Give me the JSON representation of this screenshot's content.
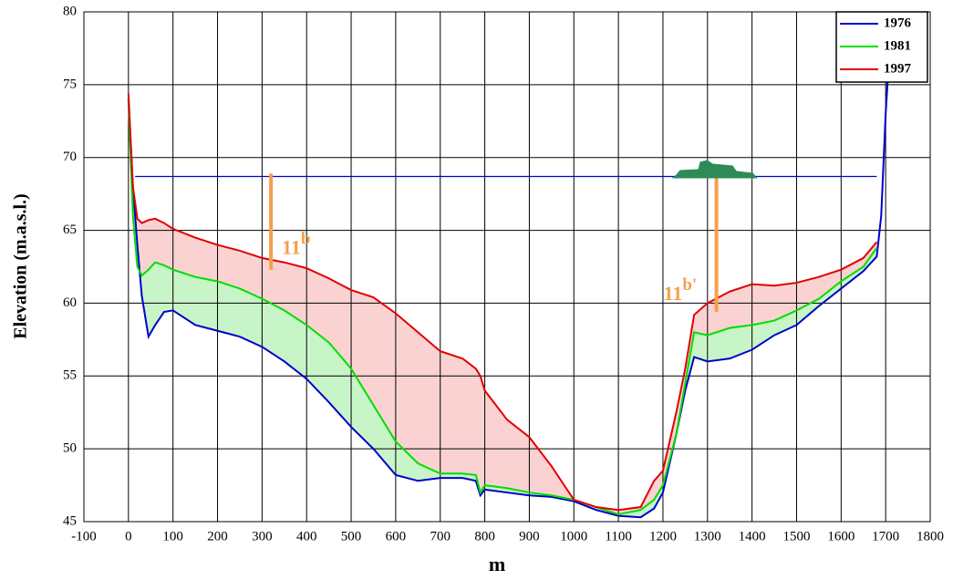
{
  "chart_data": {
    "type": "line",
    "xlabel": "m",
    "ylabel": "Elevation (m.a.s.l.)",
    "xlim": [
      -100,
      1800
    ],
    "xticks": [
      -100,
      0,
      100,
      200,
      300,
      400,
      500,
      600,
      700,
      800,
      900,
      1000,
      1100,
      1200,
      1300,
      1400,
      1500,
      1600,
      1700,
      1800
    ],
    "ylim": [
      45,
      80
    ],
    "yticks": [
      45,
      50,
      55,
      60,
      65,
      70,
      75,
      80
    ],
    "grid": true,
    "legend": "upper right",
    "x": [
      0,
      10,
      20,
      30,
      45,
      60,
      80,
      100,
      150,
      200,
      250,
      300,
      350,
      400,
      450,
      500,
      550,
      600,
      650,
      700,
      750,
      780,
      790,
      800,
      850,
      900,
      950,
      1000,
      1050,
      1100,
      1150,
      1180,
      1200,
      1230,
      1250,
      1270,
      1300,
      1350,
      1400,
      1450,
      1500,
      1550,
      1600,
      1650,
      1680,
      1690,
      1700,
      1705
    ],
    "series": [
      {
        "name": "1976",
        "color": "#0000cc",
        "values": [
          74,
          68,
          64,
          60.5,
          57.7,
          58.5,
          59.4,
          59.5,
          58.5,
          58.1,
          57.7,
          57.0,
          56.0,
          54.8,
          53.2,
          51.5,
          50.0,
          48.2,
          47.8,
          48.0,
          48.0,
          47.8,
          46.8,
          47.2,
          47.0,
          46.8,
          46.7,
          46.4,
          45.8,
          45.4,
          45.3,
          45.9,
          47.0,
          51.0,
          54.0,
          56.3,
          56.0,
          56.2,
          56.8,
          57.8,
          58.5,
          59.8,
          61.0,
          62.2,
          63.2,
          66,
          73,
          75.5
        ]
      },
      {
        "name": "1981",
        "color": "#00dd00",
        "fill": "#c8f5c8",
        "values": [
          74,
          66,
          62.5,
          61.9,
          62.3,
          62.8,
          62.6,
          62.3,
          61.8,
          61.5,
          61.0,
          60.3,
          59.5,
          58.5,
          57.3,
          55.5,
          53.0,
          50.5,
          49.0,
          48.3,
          48.3,
          48.2,
          47.0,
          47.5,
          47.3,
          47.0,
          46.8,
          46.5,
          46.0,
          45.5,
          45.8,
          46.5,
          47.5,
          51.0,
          54.5,
          58.0,
          57.8,
          58.3,
          58.5,
          58.8,
          59.5,
          60.3,
          61.5,
          62.5,
          63.8,
          null,
          null,
          null
        ]
      },
      {
        "name": "1997",
        "color": "#e00000",
        "fill": "#fad2d2",
        "values": [
          74.4,
          68,
          65.8,
          65.5,
          65.7,
          65.8,
          65.5,
          65.1,
          64.5,
          64.0,
          63.6,
          63.1,
          62.8,
          62.4,
          61.7,
          60.9,
          60.4,
          59.3,
          58.0,
          56.7,
          56.2,
          55.5,
          55.0,
          54.0,
          52.0,
          50.8,
          48.8,
          46.5,
          46.0,
          45.8,
          46.0,
          47.8,
          48.5,
          52.5,
          55.5,
          59.2,
          60.0,
          60.8,
          61.3,
          61.2,
          61.4,
          61.8,
          62.3,
          63.1,
          64.2,
          null,
          null,
          null
        ]
      }
    ],
    "water_level": {
      "y": 68.7,
      "x": [
        15,
        1680
      ],
      "color": "#0000cc"
    },
    "annotations": [
      {
        "x": 320,
        "y": [
          62.3,
          68.9
        ],
        "label": "11",
        "sup": "b",
        "color": "#f5a04a"
      },
      {
        "x": 1320,
        "y": [
          59.4,
          68.7
        ],
        "label": "11",
        "sup": "b'",
        "color": "#f5a04a"
      }
    ]
  }
}
